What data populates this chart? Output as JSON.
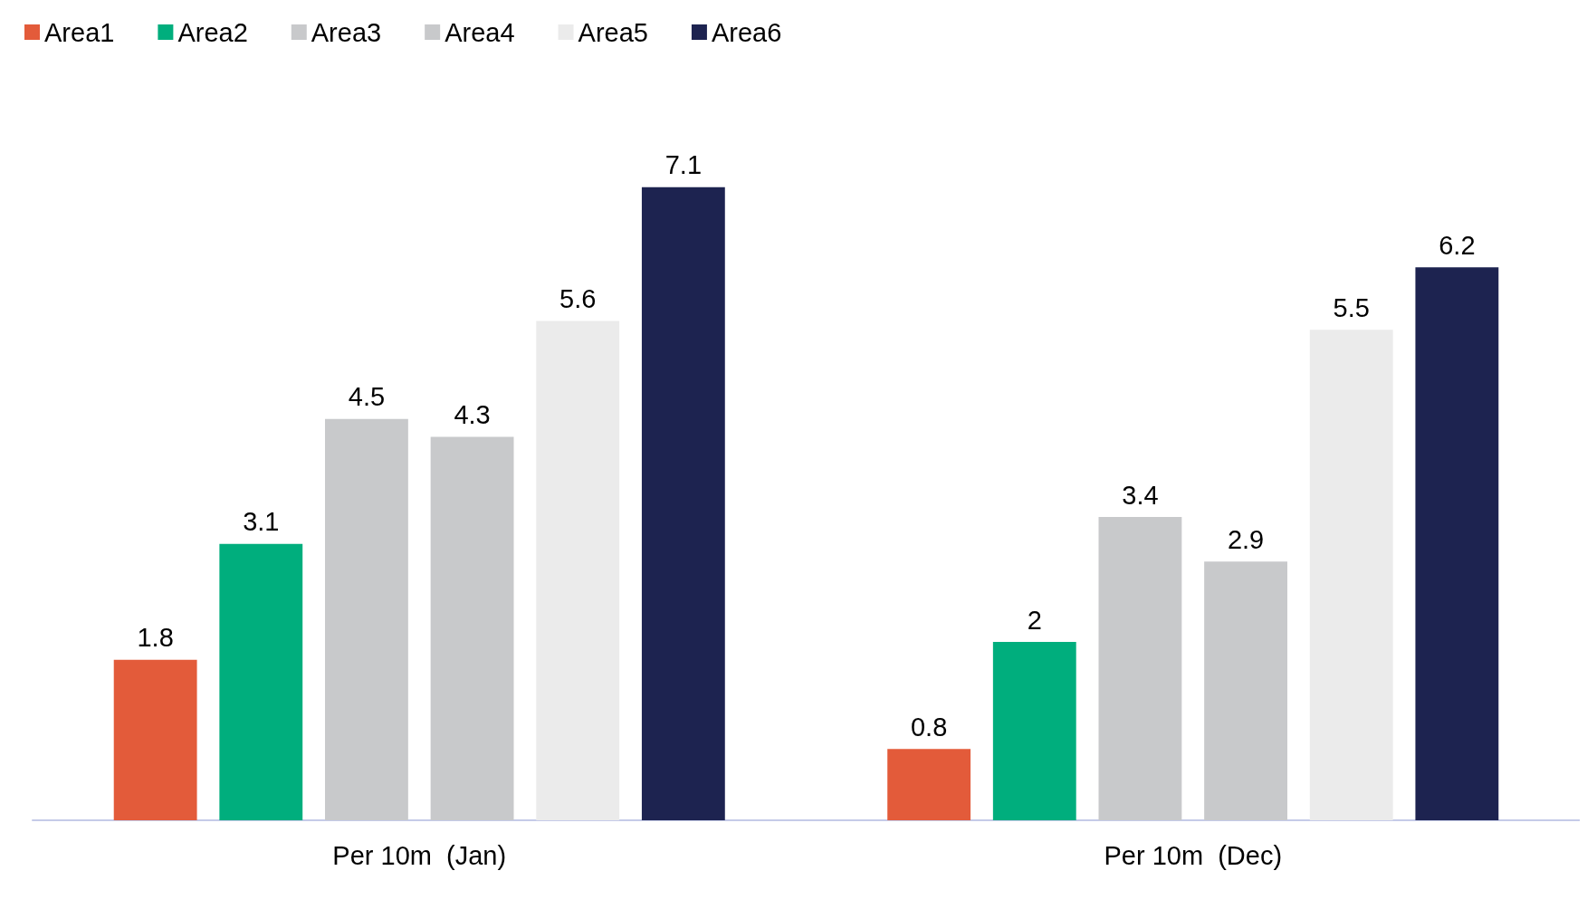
{
  "chart_data": {
    "type": "bar",
    "categories": [
      "Per 10m  (Jan)",
      "Per 10m  (Dec)"
    ],
    "series": [
      {
        "name": "Area1",
        "color": "#e35b3a",
        "values": [
          1.8,
          0.8
        ]
      },
      {
        "name": "Area2",
        "color": "#00ae7d",
        "values": [
          3.1,
          2
        ]
      },
      {
        "name": "Area3",
        "color": "#c8c9cb",
        "values": [
          4.5,
          3.4
        ]
      },
      {
        "name": "Area4",
        "color": "#c8c9cb",
        "values": [
          4.3,
          2.9
        ]
      },
      {
        "name": "Area5",
        "color": "#ebebeb",
        "values": [
          5.6,
          5.5
        ]
      },
      {
        "name": "Area6",
        "color": "#1d2350",
        "values": [
          7.1,
          6.2
        ]
      }
    ],
    "data_labels": true,
    "legend": "top left",
    "grid": false,
    "tick_labels": "x"
  }
}
